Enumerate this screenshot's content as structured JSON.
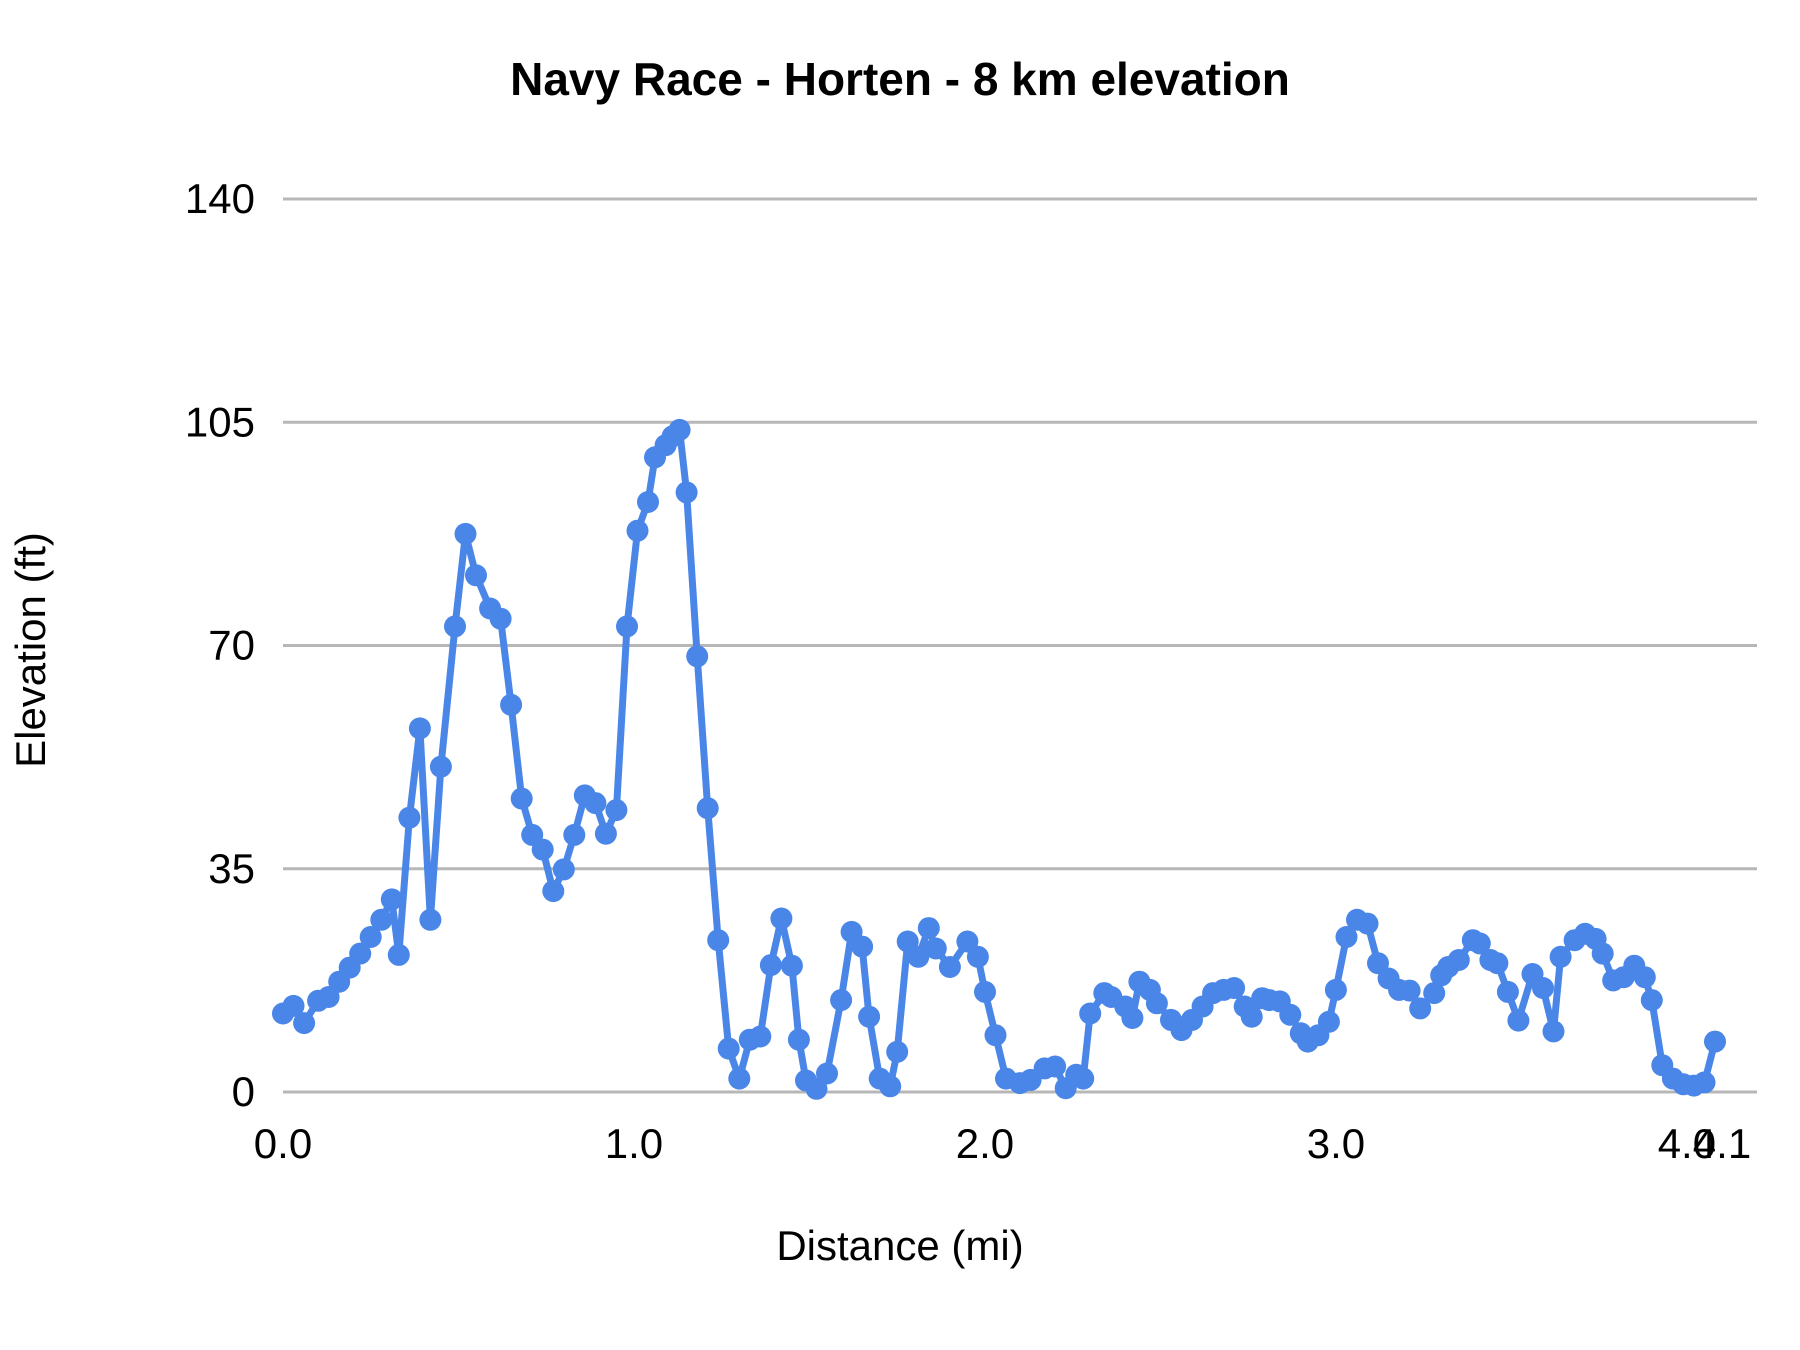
{
  "chart": {
    "title": "Navy Race - Horten - 8 km elevation",
    "x_axis_title": "Distance (mi)",
    "y_axis_title": "Elevation (ft)"
  },
  "chart_data": {
    "type": "line",
    "title": "Navy Race - Horten - 8 km elevation",
    "xlabel": "Distance (mi)",
    "ylabel": "Elevation (ft)",
    "xlim": [
      0,
      4.1
    ],
    "ylim": [
      0,
      140
    ],
    "grid": true,
    "legend": false,
    "y_ticks": [
      0,
      35,
      70,
      105,
      140
    ],
    "y_tick_labels": [
      "0",
      "35",
      "70",
      "105",
      "140"
    ],
    "x_ticks": [
      0.0,
      1.0,
      2.0,
      3.0,
      4.0,
      4.1
    ],
    "x_tick_labels": [
      "0.0",
      "1.0",
      "2.0",
      "3.0",
      "4.0",
      "4.1"
    ],
    "colors": {
      "line": "#4a86e8",
      "marker": "#4a86e8",
      "gridline": "#b7b7b7",
      "tick_text": "#000000",
      "title_text": "#000000"
    },
    "series": [
      {
        "name": "elevation",
        "points": [
          [
            0.0,
            12.3
          ],
          [
            0.03,
            13.5
          ],
          [
            0.06,
            10.8
          ],
          [
            0.1,
            14.3
          ],
          [
            0.13,
            14.9
          ],
          [
            0.16,
            17.3
          ],
          [
            0.19,
            19.5
          ],
          [
            0.22,
            21.7
          ],
          [
            0.25,
            24.3
          ],
          [
            0.28,
            27.0
          ],
          [
            0.31,
            30.2
          ],
          [
            0.33,
            21.5
          ],
          [
            0.36,
            43.0
          ],
          [
            0.39,
            57.0
          ],
          [
            0.42,
            27.0
          ],
          [
            0.45,
            51.0
          ],
          [
            0.49,
            73.0
          ],
          [
            0.52,
            87.5
          ],
          [
            0.55,
            81.0
          ],
          [
            0.59,
            75.8
          ],
          [
            0.62,
            74.2
          ],
          [
            0.65,
            60.7
          ],
          [
            0.68,
            46.0
          ],
          [
            0.71,
            40.3
          ],
          [
            0.74,
            38.0
          ],
          [
            0.77,
            31.5
          ],
          [
            0.8,
            34.9
          ],
          [
            0.83,
            40.3
          ],
          [
            0.86,
            46.5
          ],
          [
            0.89,
            45.3
          ],
          [
            0.92,
            40.5
          ],
          [
            0.95,
            44.2
          ],
          [
            0.98,
            73.0
          ],
          [
            1.01,
            88.0
          ],
          [
            1.04,
            92.5
          ],
          [
            1.06,
            99.5
          ],
          [
            1.09,
            101.4
          ],
          [
            1.11,
            102.8
          ],
          [
            1.13,
            103.8
          ],
          [
            1.15,
            94.0
          ],
          [
            1.18,
            68.3
          ],
          [
            1.21,
            44.5
          ],
          [
            1.24,
            23.8
          ],
          [
            1.27,
            6.8
          ],
          [
            1.3,
            2.1
          ],
          [
            1.33,
            8.2
          ],
          [
            1.36,
            8.7
          ],
          [
            1.39,
            19.9
          ],
          [
            1.42,
            27.2
          ],
          [
            1.45,
            19.8
          ],
          [
            1.47,
            8.2
          ],
          [
            1.49,
            1.8
          ],
          [
            1.52,
            0.5
          ],
          [
            1.55,
            2.9
          ],
          [
            1.59,
            14.4
          ],
          [
            1.62,
            25.1
          ],
          [
            1.65,
            22.8
          ],
          [
            1.67,
            11.8
          ],
          [
            1.7,
            2.1
          ],
          [
            1.73,
            0.9
          ],
          [
            1.75,
            6.3
          ],
          [
            1.78,
            23.6
          ],
          [
            1.81,
            21.2
          ],
          [
            1.84,
            25.7
          ],
          [
            1.86,
            22.5
          ],
          [
            1.9,
            19.6
          ],
          [
            1.95,
            23.6
          ],
          [
            1.98,
            21.2
          ],
          [
            2.0,
            15.7
          ],
          [
            2.03,
            8.9
          ],
          [
            2.06,
            2.1
          ],
          [
            2.1,
            1.4
          ],
          [
            2.13,
            1.9
          ],
          [
            2.17,
            3.7
          ],
          [
            2.2,
            4.0
          ],
          [
            2.23,
            0.6
          ],
          [
            2.26,
            2.7
          ],
          [
            2.28,
            2.1
          ],
          [
            2.3,
            12.3
          ],
          [
            2.34,
            15.5
          ],
          [
            2.36,
            14.9
          ],
          [
            2.4,
            13.4
          ],
          [
            2.42,
            11.6
          ],
          [
            2.44,
            17.3
          ],
          [
            2.47,
            16.0
          ],
          [
            2.49,
            13.9
          ],
          [
            2.53,
            11.3
          ],
          [
            2.56,
            9.7
          ],
          [
            2.59,
            11.3
          ],
          [
            2.62,
            13.4
          ],
          [
            2.65,
            15.5
          ],
          [
            2.68,
            16.0
          ],
          [
            2.71,
            16.3
          ],
          [
            2.74,
            13.4
          ],
          [
            2.76,
            11.8
          ],
          [
            2.79,
            14.7
          ],
          [
            2.81,
            14.4
          ],
          [
            2.84,
            14.2
          ],
          [
            2.87,
            12.1
          ],
          [
            2.9,
            9.2
          ],
          [
            2.92,
            7.9
          ],
          [
            2.95,
            8.9
          ],
          [
            2.98,
            11.0
          ],
          [
            3.0,
            16.0
          ],
          [
            3.03,
            24.3
          ],
          [
            3.06,
            27.0
          ],
          [
            3.09,
            26.4
          ],
          [
            3.12,
            20.2
          ],
          [
            3.15,
            17.8
          ],
          [
            3.18,
            16.0
          ],
          [
            3.21,
            15.9
          ],
          [
            3.24,
            13.1
          ],
          [
            3.28,
            15.5
          ],
          [
            3.3,
            18.3
          ],
          [
            3.32,
            19.6
          ],
          [
            3.35,
            20.7
          ],
          [
            3.39,
            23.8
          ],
          [
            3.41,
            23.3
          ],
          [
            3.44,
            20.7
          ],
          [
            3.46,
            20.2
          ],
          [
            3.49,
            15.7
          ],
          [
            3.52,
            11.2
          ],
          [
            3.56,
            18.5
          ],
          [
            3.59,
            16.3
          ],
          [
            3.62,
            9.5
          ],
          [
            3.64,
            21.2
          ],
          [
            3.68,
            23.8
          ],
          [
            3.71,
            24.8
          ],
          [
            3.74,
            24.0
          ],
          [
            3.76,
            21.7
          ],
          [
            3.79,
            17.5
          ],
          [
            3.82,
            18.0
          ],
          [
            3.85,
            19.8
          ],
          [
            3.88,
            18.0
          ],
          [
            3.9,
            14.4
          ],
          [
            3.93,
            4.2
          ],
          [
            3.96,
            2.1
          ],
          [
            3.99,
            1.2
          ],
          [
            4.02,
            1.0
          ],
          [
            4.05,
            1.5
          ],
          [
            4.08,
            7.9
          ]
        ]
      }
    ]
  }
}
